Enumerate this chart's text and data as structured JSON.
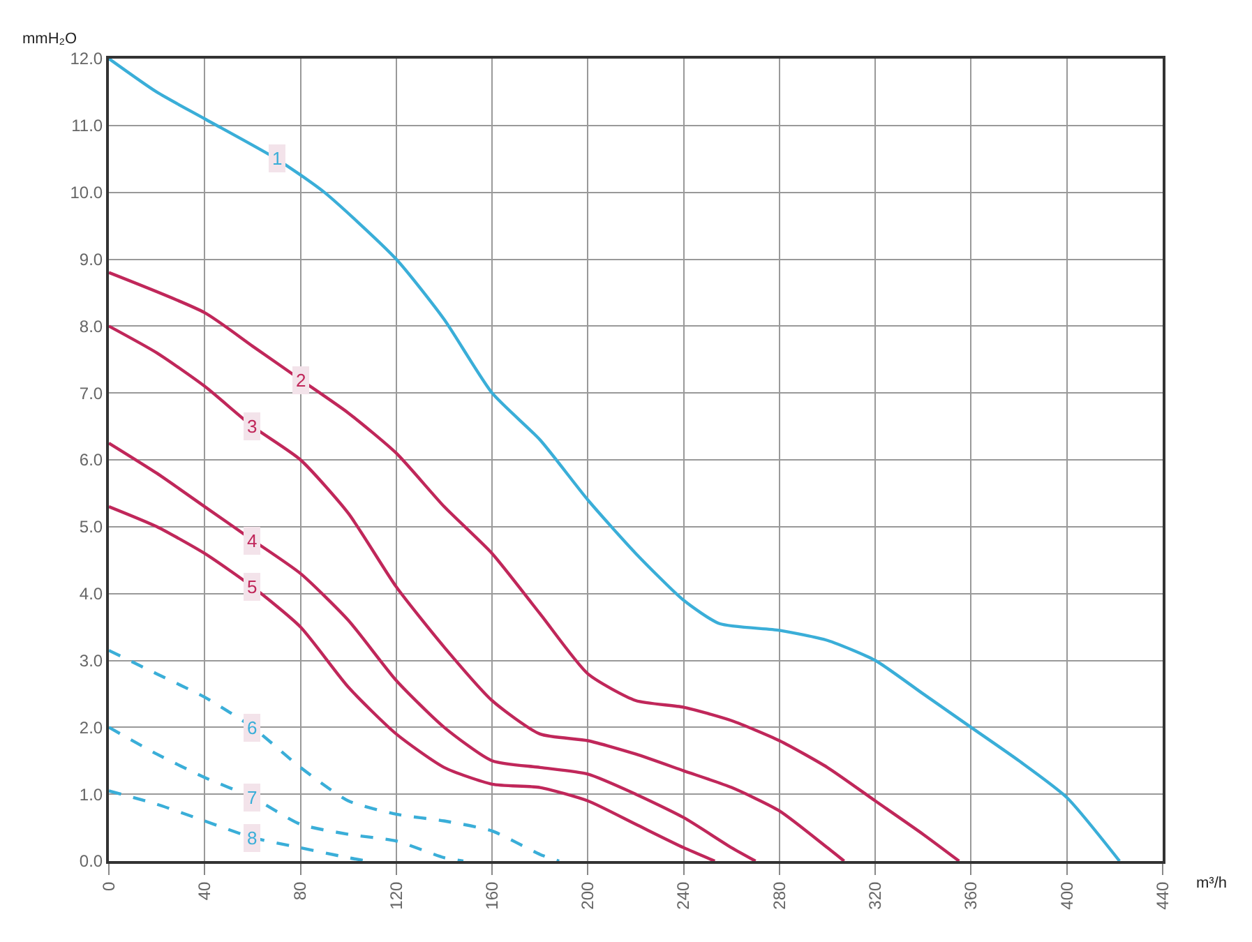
{
  "chart_data": {
    "type": "line",
    "xlabel": "m³/h",
    "ylabel": "mmH₂O",
    "xlim": [
      0,
      440
    ],
    "xticks": [
      0,
      40,
      80,
      120,
      160,
      200,
      240,
      280,
      320,
      360,
      400,
      440
    ],
    "ylim": [
      0,
      12
    ],
    "yticks": [
      {
        "value": 0,
        "label": "0.0"
      },
      {
        "value": 1,
        "label": "1.0"
      },
      {
        "value": 2,
        "label": "2.0"
      },
      {
        "value": 3,
        "label": "3.0"
      },
      {
        "value": 4,
        "label": "4.0"
      },
      {
        "value": 5,
        "label": "5.0"
      },
      {
        "value": 6,
        "label": "6.0"
      },
      {
        "value": 7,
        "label": "7.0"
      },
      {
        "value": 8,
        "label": "8.0"
      },
      {
        "value": 9,
        "label": "9.0"
      },
      {
        "value": 10,
        "label": "10.0"
      },
      {
        "value": 11,
        "label": "11.0"
      },
      {
        "value": 12,
        "label": "12.0"
      }
    ],
    "grid": true,
    "legend": false,
    "marker": "none",
    "series": [
      {
        "name": "1",
        "color": "#3aaed8",
        "line_style": "solid",
        "x": [
          0,
          20,
          40,
          70,
          90,
          120,
          140,
          160,
          180,
          200,
          220,
          240,
          255,
          280,
          300,
          320,
          340,
          360,
          380,
          400,
          422
        ],
        "values": [
          12,
          11.5,
          11.1,
          10.5,
          10.0,
          9.0,
          8.1,
          7.0,
          6.3,
          5.4,
          4.6,
          3.9,
          3.55,
          3.45,
          3.3,
          3.0,
          2.5,
          2.0,
          1.5,
          0.95,
          0
        ]
      },
      {
        "name": "2",
        "color": "#c0275a",
        "line_style": "solid",
        "x": [
          0,
          40,
          60,
          80,
          100,
          120,
          140,
          160,
          180,
          200,
          220,
          240,
          260,
          280,
          300,
          320,
          340,
          355
        ],
        "values": [
          8.8,
          8.2,
          7.7,
          7.2,
          6.7,
          6.1,
          5.3,
          4.6,
          3.7,
          2.8,
          2.4,
          2.3,
          2.1,
          1.8,
          1.4,
          0.9,
          0.4,
          0
        ]
      },
      {
        "name": "3",
        "color": "#c0275a",
        "line_style": "solid",
        "x": [
          0,
          20,
          40,
          60,
          80,
          100,
          120,
          140,
          160,
          180,
          200,
          220,
          240,
          260,
          280,
          300,
          307
        ],
        "values": [
          8.0,
          7.6,
          7.1,
          6.5,
          6.0,
          5.2,
          4.1,
          3.2,
          2.4,
          1.9,
          1.8,
          1.6,
          1.35,
          1.1,
          0.75,
          0.2,
          0
        ]
      },
      {
        "name": "4",
        "color": "#c0275a",
        "line_style": "solid",
        "x": [
          0,
          20,
          40,
          60,
          80,
          100,
          120,
          140,
          160,
          180,
          200,
          220,
          240,
          260,
          270
        ],
        "values": [
          6.25,
          5.8,
          5.3,
          4.8,
          4.3,
          3.6,
          2.7,
          2.0,
          1.5,
          1.4,
          1.3,
          1.0,
          0.65,
          0.2,
          0
        ]
      },
      {
        "name": "5",
        "color": "#c0275a",
        "line_style": "solid",
        "x": [
          0,
          20,
          40,
          60,
          80,
          100,
          120,
          140,
          160,
          180,
          200,
          220,
          240,
          253
        ],
        "values": [
          5.3,
          5.0,
          4.6,
          4.1,
          3.5,
          2.6,
          1.9,
          1.4,
          1.15,
          1.1,
          0.9,
          0.55,
          0.2,
          0
        ]
      },
      {
        "name": "6",
        "color": "#3aaed8",
        "line_style": "dashed",
        "x": [
          0,
          20,
          40,
          60,
          80,
          100,
          120,
          140,
          160,
          180,
          188
        ],
        "values": [
          3.15,
          2.8,
          2.45,
          2.0,
          1.4,
          0.9,
          0.7,
          0.6,
          0.45,
          0.1,
          0
        ]
      },
      {
        "name": "7",
        "color": "#3aaed8",
        "line_style": "dashed",
        "x": [
          0,
          20,
          40,
          60,
          80,
          100,
          120,
          140,
          148
        ],
        "values": [
          2.0,
          1.6,
          1.25,
          0.95,
          0.55,
          0.4,
          0.3,
          0.05,
          0
        ]
      },
      {
        "name": "8",
        "color": "#3aaed8",
        "line_style": "dashed",
        "x": [
          0,
          20,
          40,
          60,
          80,
          100,
          108
        ],
        "values": [
          1.05,
          0.85,
          0.6,
          0.35,
          0.2,
          0.05,
          0
        ]
      }
    ]
  }
}
